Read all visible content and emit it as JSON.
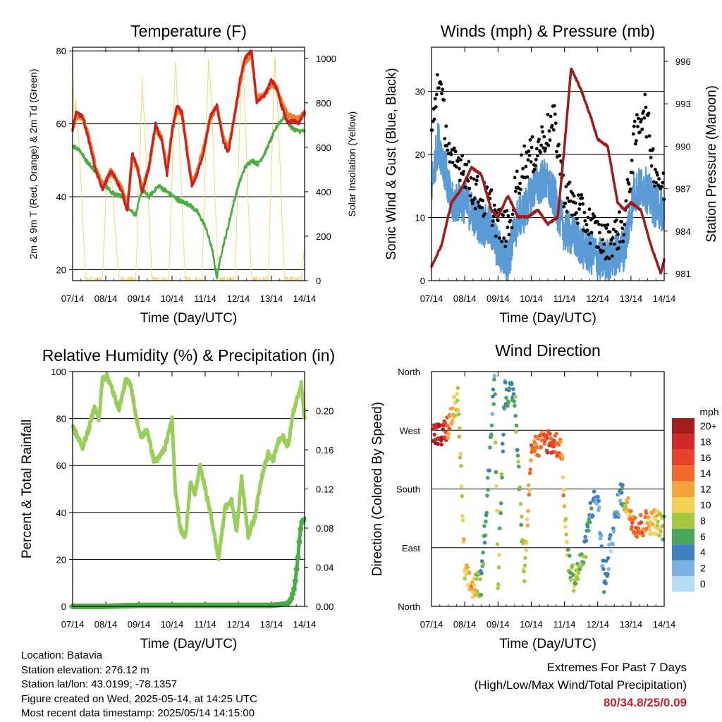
{
  "chart_data": [
    {
      "type": "line",
      "title": "Temperature (F)",
      "xlabel": "Time (Day/UTC)",
      "ylabel": "2m & 9m T (Red, Orange) & 2m Td (Green)",
      "ylabel_right": "Solar Insolation (Yellow)",
      "x_ticks": [
        "07/14",
        "08/14",
        "09/14",
        "10/14",
        "11/14",
        "12/14",
        "13/14",
        "14/14"
      ],
      "ylim": [
        17,
        81
      ],
      "y_ticks": [
        20,
        40,
        60,
        80
      ],
      "ylim_right": [
        0,
        1050
      ],
      "y_ticks_right": [
        0,
        200,
        400,
        600,
        800,
        1000
      ],
      "grid": "horizontal",
      "colors": {
        "t2m": "#cc1f1f",
        "t9m": "#f07c2e",
        "td2m": "#4aae45",
        "solar": "#f5d76e"
      },
      "series": [
        {
          "name": "2m T",
          "x_day": [
            0,
            0.1,
            0.3,
            0.5,
            0.7,
            0.9,
            1.0,
            1.15,
            1.3,
            1.5,
            1.65,
            1.8,
            1.95,
            2.1,
            2.3,
            2.5,
            2.7,
            2.85,
            3.0,
            3.15,
            3.3,
            3.45,
            3.6,
            3.75,
            3.95,
            4.15,
            4.35,
            4.55,
            4.7,
            4.9,
            5.05,
            5.2,
            5.4,
            5.55,
            5.8,
            6.0,
            6.15,
            6.3,
            6.5,
            6.65,
            6.8,
            7.0
          ],
          "values": [
            58,
            63,
            62,
            55,
            47,
            42,
            44,
            47,
            45,
            41,
            36,
            52,
            48,
            41,
            48,
            60,
            55,
            46,
            58,
            65,
            63,
            52,
            43,
            46,
            52,
            62,
            65,
            55,
            52,
            63,
            72,
            78,
            80,
            66,
            68,
            72,
            70,
            65,
            60,
            61,
            60,
            63
          ]
        },
        {
          "name": "9m T",
          "x_day": [
            0,
            0.1,
            0.3,
            0.5,
            0.7,
            0.9,
            1.0,
            1.15,
            1.3,
            1.5,
            1.65,
            1.8,
            1.95,
            2.1,
            2.3,
            2.5,
            2.7,
            2.85,
            3.0,
            3.15,
            3.3,
            3.45,
            3.6,
            3.75,
            3.95,
            4.15,
            4.35,
            4.55,
            4.7,
            4.9,
            5.05,
            5.2,
            5.4,
            5.55,
            5.8,
            6.0,
            6.15,
            6.3,
            6.5,
            6.65,
            6.8,
            7.0
          ],
          "values": [
            58,
            62,
            62,
            56,
            48,
            43,
            44,
            47,
            45,
            42,
            37,
            51,
            48,
            42,
            48,
            59,
            56,
            47,
            58,
            64,
            63,
            53,
            44,
            47,
            53,
            61,
            65,
            56,
            53,
            63,
            71,
            77,
            79,
            67,
            68,
            71,
            70,
            66,
            62,
            62,
            61,
            63
          ]
        },
        {
          "name": "2m Td",
          "x_day": [
            0,
            0.2,
            0.4,
            0.6,
            0.9,
            1.2,
            1.5,
            1.7,
            1.9,
            2.1,
            2.3,
            2.6,
            2.9,
            3.2,
            3.5,
            3.75,
            4.0,
            4.2,
            4.35,
            4.5,
            4.7,
            4.85,
            5.0,
            5.2,
            5.4,
            5.6,
            5.8,
            6.0,
            6.2,
            6.4,
            6.6,
            6.8,
            7.0
          ],
          "values": [
            54,
            53,
            50,
            48,
            44,
            41,
            40,
            37,
            35,
            42,
            40,
            43,
            41,
            39,
            38,
            36,
            32,
            26,
            18,
            25,
            32,
            38,
            43,
            48,
            50,
            49,
            52,
            56,
            60,
            62,
            59,
            58,
            58
          ]
        },
        {
          "name": "Solar Insolation",
          "axis": "right",
          "x_day": [
            0,
            0.05,
            0.1,
            0.2,
            0.3,
            0.4,
            0.9,
            1.0,
            1.1,
            1.2,
            1.3,
            1.4,
            1.9,
            2.0,
            2.1,
            2.2,
            2.3,
            2.4,
            2.9,
            3.0,
            3.1,
            3.2,
            3.3,
            3.4,
            3.9,
            4.0,
            4.1,
            4.2,
            4.3,
            4.4,
            4.9,
            5.0,
            5.1,
            5.2,
            5.3,
            5.4,
            5.9,
            6.0,
            6.1,
            6.2,
            6.3,
            6.4,
            6.9,
            7.0
          ],
          "values": [
            1000,
            700,
            800,
            600,
            300,
            0,
            0,
            350,
            500,
            400,
            200,
            0,
            0,
            400,
            900,
            600,
            300,
            0,
            0,
            450,
            1000,
            700,
            350,
            0,
            0,
            500,
            1000,
            800,
            350,
            0,
            0,
            500,
            1000,
            800,
            350,
            0,
            0,
            500,
            1000,
            750,
            350,
            0,
            0,
            150
          ]
        }
      ]
    },
    {
      "type": "scatter",
      "title": "Winds (mph) & Pressure (mb)",
      "xlabel": "Time (Day/UTC)",
      "ylabel": "Sonic Wind & Gust (Blue, Black)",
      "ylabel_right": "Station Pressure (Maroon)",
      "x_ticks": [
        "07/14",
        "08/14",
        "09/14",
        "10/14",
        "11/14",
        "12/14",
        "13/14",
        "14/14"
      ],
      "ylim": [
        0,
        37
      ],
      "y_ticks": [
        0,
        10,
        20,
        30
      ],
      "ylim_right": [
        980.5,
        997
      ],
      "y_ticks_right": [
        981,
        984,
        987,
        990,
        993,
        996
      ],
      "grid": "horizontal",
      "colors": {
        "wind": "#5b9bd5",
        "gust": "#000000",
        "pressure": "#a01c1c"
      },
      "series": [
        {
          "name": "Sonic Wind",
          "x_day": [
            0,
            0.2,
            0.4,
            0.6,
            0.9,
            1.2,
            1.5,
            1.8,
            2.0,
            2.3,
            2.6,
            2.8,
            3.1,
            3.4,
            3.7,
            4.0,
            4.3,
            4.6,
            4.9,
            5.2,
            5.5,
            5.8,
            6.1,
            6.4,
            6.7,
            7.0
          ],
          "values": [
            15,
            22,
            18,
            12,
            13,
            11,
            9,
            8,
            5,
            3,
            10,
            11,
            15,
            16,
            13,
            8,
            7,
            5,
            4,
            3,
            4,
            5,
            14,
            15,
            12,
            11
          ]
        },
        {
          "name": "Gust",
          "x_day": [
            0,
            0.2,
            0.4,
            0.6,
            0.9,
            1.2,
            1.5,
            1.8,
            2.0,
            2.3,
            2.6,
            2.8,
            3.1,
            3.4,
            3.7,
            4.0,
            4.3,
            4.6,
            4.9,
            5.2,
            5.5,
            5.8,
            6.1,
            6.4,
            6.7,
            7.0
          ],
          "values": [
            22,
            33,
            25,
            18,
            19,
            15,
            13,
            12,
            9,
            8,
            16,
            19,
            20,
            23,
            25,
            14,
            12,
            10,
            8,
            6,
            7,
            9,
            22,
            28,
            18,
            14
          ]
        },
        {
          "name": "Station Pressure",
          "axis": "right",
          "x_day": [
            0,
            0.3,
            0.6,
            0.9,
            1.2,
            1.5,
            1.8,
            2.0,
            2.3,
            2.6,
            2.9,
            3.2,
            3.5,
            3.8,
            4.0,
            4.2,
            4.5,
            4.8,
            5.0,
            5.3,
            5.6,
            5.8,
            6.0,
            6.3,
            6.6,
            6.9,
            7.0
          ],
          "values": [
            981.5,
            983,
            986,
            987,
            988.5,
            988,
            985.5,
            985,
            986.5,
            985,
            985,
            985.5,
            984.5,
            985,
            990,
            995.5,
            994,
            992,
            990.5,
            990,
            986,
            985.5,
            986,
            985.5,
            983,
            981,
            982
          ]
        }
      ]
    },
    {
      "type": "line",
      "title": "Relative Humidity (%) & Precipitation (in)",
      "xlabel": "Time (Day/UTC)",
      "ylabel": "Percent & Total Rainfall",
      "x_ticks": [
        "07/14",
        "08/14",
        "09/14",
        "10/14",
        "11/14",
        "12/14",
        "13/14",
        "14/14"
      ],
      "ylim": [
        0,
        100
      ],
      "y_ticks": [
        0,
        20,
        40,
        60,
        80,
        100
      ],
      "ylim_right": [
        0,
        0.24
      ],
      "y_ticks_right": [
        0.0,
        0.04,
        0.08,
        0.12,
        0.16,
        0.2
      ],
      "grid": "horizontal",
      "colors": {
        "rh": "#9acd5a",
        "precip": "#4aae45"
      },
      "series": [
        {
          "name": "Relative Humidity",
          "x_day": [
            0,
            0.15,
            0.3,
            0.5,
            0.65,
            0.8,
            0.9,
            1.05,
            1.25,
            1.4,
            1.6,
            1.75,
            1.9,
            2.05,
            2.25,
            2.45,
            2.6,
            2.8,
            3.0,
            3.1,
            3.25,
            3.4,
            3.55,
            3.7,
            3.85,
            4.0,
            4.2,
            4.4,
            4.6,
            4.8,
            4.95,
            5.1,
            5.3,
            5.5,
            5.7,
            5.9,
            6.05,
            6.2,
            6.35,
            6.5,
            6.65,
            6.8,
            6.9,
            7.0
          ],
          "values": [
            77,
            72,
            68,
            76,
            85,
            80,
            97,
            98,
            90,
            84,
            96,
            95,
            82,
            72,
            75,
            62,
            63,
            68,
            80,
            50,
            33,
            29,
            52,
            48,
            60,
            50,
            37,
            20,
            42,
            45,
            32,
            55,
            30,
            38,
            55,
            65,
            62,
            70,
            72,
            68,
            82,
            90,
            95,
            80
          ]
        },
        {
          "name": "Total Rainfall",
          "axis": "right",
          "x_day": [
            0,
            0.9,
            2.0,
            4.0,
            5.0,
            6.0,
            6.3,
            6.5,
            6.6,
            6.7,
            6.8,
            6.85,
            6.9,
            7.0
          ],
          "values": [
            0.0,
            0.0,
            0.001,
            0.001,
            0.001,
            0.001,
            0.002,
            0.003,
            0.008,
            0.02,
            0.05,
            0.07,
            0.085,
            0.09
          ]
        }
      ]
    },
    {
      "type": "scatter",
      "title": "Wind Direction",
      "xlabel": "Time (Day/UTC)",
      "ylabel": "Direction (Colored By Speed)",
      "x_ticks": [
        "07/14",
        "08/14",
        "09/14",
        "10/14",
        "11/14",
        "12/14",
        "13/14",
        "14/14"
      ],
      "y_ticks": [
        "North",
        "East",
        "South",
        "West",
        "North"
      ],
      "ylim": [
        0,
        360
      ],
      "grid": "horizontal",
      "colorbar": {
        "title": "mph",
        "labels": [
          "20+",
          "18",
          "16",
          "14",
          "12",
          "10",
          "8",
          "6",
          "4",
          "2",
          "0"
        ],
        "colors": [
          "#a51c1c",
          "#cf2a2a",
          "#e8422c",
          "#f2692c",
          "#f6a33c",
          "#f2d154",
          "#a5c83c",
          "#4aa55a",
          "#3f7fc1",
          "#7ab3e2",
          "#b6ddf6"
        ]
      },
      "series": [
        {
          "name": "Direction",
          "x_day": [
            0.1,
            0.3,
            0.5,
            0.8,
            1.0,
            1.2,
            1.5,
            1.9,
            2.0,
            2.2,
            2.5,
            2.8,
            3.0,
            3.2,
            3.5,
            3.9,
            4.1,
            4.3,
            4.6,
            4.8,
            5.0,
            5.2,
            5.4,
            5.7,
            6.0,
            6.2,
            6.5,
            6.8,
            7.0
          ],
          "values": [
            265,
            260,
            275,
            320,
            50,
            30,
            35,
            350,
            35,
            330,
            320,
            45,
            250,
            245,
            255,
            245,
            70,
            40,
            80,
            150,
            170,
            30,
            100,
            175,
            140,
            120,
            130,
            130,
            120
          ],
          "speed": [
            18,
            20,
            14,
            8,
            10,
            12,
            6,
            4,
            10,
            4,
            6,
            8,
            14,
            12,
            16,
            14,
            8,
            8,
            6,
            4,
            2,
            4,
            2,
            4,
            14,
            16,
            12,
            10,
            8
          ]
        }
      ]
    }
  ],
  "info": {
    "location": "Location: Batavia",
    "elevation": "Station elevation: 276.12 m",
    "latlon": "Station lat/lon: 43.0199; -78.1357",
    "created": "Figure created on Wed, 2025-05-14, at 14:25 UTC",
    "recent": "Most recent data timestamp: 2025/05/14 14:15:00"
  },
  "extremes": {
    "title": "Extremes For Past 7 Days",
    "subtitle": "(High/Low/Max Wind/Total Precipitation)",
    "values": "80/34.8/25/0.09"
  }
}
